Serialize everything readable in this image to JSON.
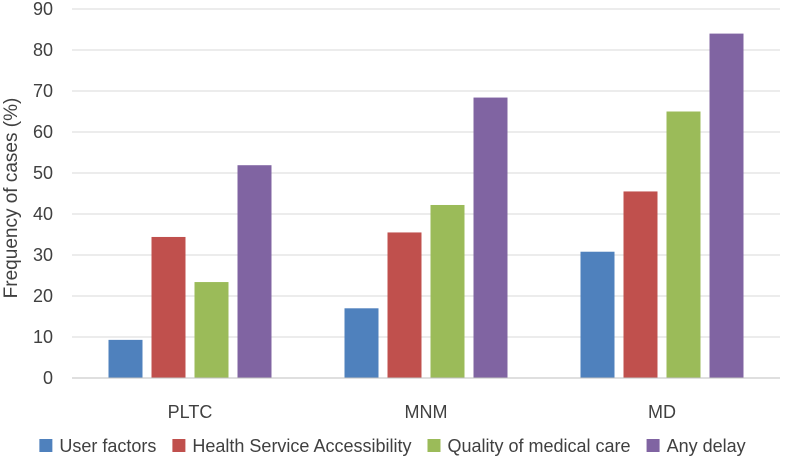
{
  "chart_data": {
    "type": "bar",
    "title": "",
    "xlabel": "",
    "ylabel": "Frequency of cases (%)",
    "ylim": [
      0,
      90
    ],
    "ytick_step": 10,
    "yticks": [
      "0",
      "10",
      "20",
      "30",
      "40",
      "50",
      "60",
      "70",
      "80",
      "90"
    ],
    "grid": true,
    "legend_position": "bottom",
    "categories": [
      "PLTC",
      "MNM",
      "MD"
    ],
    "series": [
      {
        "name": "User factors",
        "color": "#4f81bd",
        "values": [
          9.3,
          17.0,
          30.8
        ]
      },
      {
        "name": "Health Service Accessibility",
        "color": "#c0504d",
        "values": [
          34.4,
          35.5,
          45.5
        ]
      },
      {
        "name": "Quality of medical care",
        "color": "#9bbb59",
        "values": [
          23.4,
          42.2,
          65.0
        ]
      },
      {
        "name": "Any delay",
        "color": "#8064a2",
        "values": [
          51.9,
          68.4,
          84.0
        ]
      }
    ]
  }
}
